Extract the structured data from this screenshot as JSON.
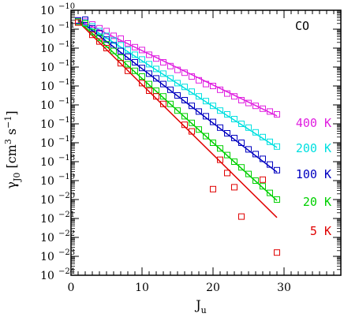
{
  "chart_data": {
    "type": "scatter",
    "title": "",
    "annotation": "CO",
    "xlabel": {
      "base": "J",
      "sub": "u"
    },
    "ylabel": {
      "pre": "γ",
      "sub": "J0",
      "mid": " [cm",
      "exp1": "3",
      "mid2": " s",
      "exp2": "−1",
      "post": "]"
    },
    "x_range": [
      0,
      38
    ],
    "y_range_log10": [
      -24,
      -10
    ],
    "y_scale": "log",
    "x_ticks": [
      0,
      10,
      20,
      30
    ],
    "y_tick_exponents": [
      -10,
      -11,
      -12,
      -13,
      -14,
      -15,
      -16,
      -17,
      -18,
      -19,
      -20,
      -21,
      -22,
      -23,
      -24
    ],
    "y_tick_base": "10",
    "grid": false,
    "series": [
      {
        "name": "400 K",
        "color": "#e020e0",
        "points": [
          [
            1,
            -10.53
          ],
          [
            2,
            -10.6
          ],
          [
            3,
            -10.75
          ],
          [
            4,
            -10.95
          ],
          [
            5,
            -11.1
          ],
          [
            6,
            -11.35
          ],
          [
            7,
            -11.5
          ],
          [
            8,
            -11.75
          ],
          [
            9,
            -11.95
          ],
          [
            10,
            -12.1
          ],
          [
            11,
            -12.35
          ],
          [
            12,
            -12.55
          ],
          [
            13,
            -12.75
          ],
          [
            14,
            -12.95
          ],
          [
            15,
            -13.15
          ],
          [
            16,
            -13.3
          ],
          [
            17,
            -13.5
          ],
          [
            18,
            -13.7
          ],
          [
            19,
            -13.9
          ],
          [
            20,
            -14.0
          ],
          [
            21,
            -14.2
          ],
          [
            22,
            -14.4
          ],
          [
            23,
            -14.55
          ],
          [
            24,
            -14.75
          ],
          [
            25,
            -14.9
          ],
          [
            26,
            -15.05
          ],
          [
            27,
            -15.2
          ],
          [
            28,
            -15.35
          ],
          [
            29,
            -15.5
          ]
        ],
        "fit": [
          [
            1,
            -10.5
          ],
          [
            29,
            -15.58
          ]
        ]
      },
      {
        "name": "200 K",
        "color": "#00e0e0",
        "points": [
          [
            1,
            -10.55
          ],
          [
            2,
            -10.65
          ],
          [
            3,
            -10.85
          ],
          [
            4,
            -11.1
          ],
          [
            5,
            -11.35
          ],
          [
            6,
            -11.6
          ],
          [
            7,
            -11.85
          ],
          [
            8,
            -12.1
          ],
          [
            9,
            -12.35
          ],
          [
            10,
            -12.6
          ],
          [
            11,
            -12.85
          ],
          [
            12,
            -13.1
          ],
          [
            13,
            -13.35
          ],
          [
            14,
            -13.6
          ],
          [
            15,
            -13.85
          ],
          [
            16,
            -14.05
          ],
          [
            17,
            -14.3
          ],
          [
            18,
            -14.55
          ],
          [
            19,
            -14.8
          ],
          [
            20,
            -15.05
          ],
          [
            21,
            -15.3
          ],
          [
            22,
            -15.5
          ],
          [
            23,
            -15.75
          ],
          [
            24,
            -16.0
          ],
          [
            25,
            -16.2
          ],
          [
            26,
            -16.45
          ],
          [
            27,
            -16.7
          ],
          [
            28,
            -16.95
          ],
          [
            29,
            -17.2
          ]
        ],
        "fit": [
          [
            1,
            -10.5
          ],
          [
            29,
            -17.25
          ]
        ]
      },
      {
        "name": "100 K",
        "color": "#0000c0",
        "points": [
          [
            1,
            -10.55
          ],
          [
            2,
            -10.5
          ],
          [
            3,
            -10.95
          ],
          [
            4,
            -11.2
          ],
          [
            5,
            -11.55
          ],
          [
            6,
            -11.85
          ],
          [
            7,
            -12.15
          ],
          [
            8,
            -12.45
          ],
          [
            9,
            -12.75
          ],
          [
            10,
            -13.05
          ],
          [
            11,
            -13.35
          ],
          [
            12,
            -13.6
          ],
          [
            13,
            -13.9
          ],
          [
            14,
            -14.2
          ],
          [
            15,
            -14.5
          ],
          [
            16,
            -14.75
          ],
          [
            17,
            -15.05
          ],
          [
            18,
            -15.35
          ],
          [
            19,
            -15.6
          ],
          [
            20,
            -15.9
          ],
          [
            21,
            -16.2
          ],
          [
            22,
            -16.5
          ],
          [
            23,
            -16.75
          ],
          [
            24,
            -17.0
          ],
          [
            25,
            -17.35
          ],
          [
            26,
            -17.6
          ],
          [
            27,
            -17.85
          ],
          [
            28,
            -18.15
          ],
          [
            29,
            -18.45
          ]
        ],
        "fit": [
          [
            1,
            -10.5
          ],
          [
            29,
            -18.55
          ]
        ]
      },
      {
        "name": "20 K",
        "color": "#00d000",
        "points": [
          [
            1,
            -10.6
          ],
          [
            2,
            -10.7
          ],
          [
            3,
            -11.15
          ],
          [
            4,
            -11.45
          ],
          [
            5,
            -11.8
          ],
          [
            6,
            -12.15
          ],
          [
            7,
            -12.5
          ],
          [
            8,
            -12.85
          ],
          [
            9,
            -13.2
          ],
          [
            10,
            -13.5
          ],
          [
            11,
            -13.9
          ],
          [
            12,
            -14.25
          ],
          [
            13,
            -14.55
          ],
          [
            14,
            -14.95
          ],
          [
            15,
            -15.3
          ],
          [
            16,
            -15.6
          ],
          [
            17,
            -15.95
          ],
          [
            18,
            -16.3
          ],
          [
            19,
            -16.65
          ],
          [
            20,
            -17.0
          ],
          [
            21,
            -17.3
          ],
          [
            22,
            -17.65
          ],
          [
            23,
            -18.0
          ],
          [
            24,
            -18.3
          ],
          [
            25,
            -18.65
          ],
          [
            26,
            -19.0
          ],
          [
            27,
            -19.3
          ],
          [
            28,
            -19.65
          ],
          [
            29,
            -20.0
          ]
        ],
        "fit": [
          [
            1,
            -10.55
          ],
          [
            29,
            -20.05
          ]
        ]
      },
      {
        "name": "5 K",
        "color": "#e00000",
        "points": [
          [
            1,
            -10.65
          ],
          [
            3,
            -11.3
          ],
          [
            4,
            -11.65
          ],
          [
            5,
            -12.0
          ],
          [
            7,
            -12.8
          ],
          [
            8,
            -13.2
          ],
          [
            10,
            -13.85
          ],
          [
            11,
            -14.25
          ],
          [
            12,
            -14.55
          ],
          [
            13,
            -14.95
          ],
          [
            16,
            -16.05
          ],
          [
            17,
            -16.4
          ],
          [
            20,
            -19.45
          ],
          [
            21,
            -17.9
          ],
          [
            22,
            -18.6
          ],
          [
            23,
            -19.35
          ],
          [
            24,
            -20.9
          ],
          [
            27,
            -18.95
          ],
          [
            29,
            -22.8
          ]
        ],
        "fit": [
          [
            1,
            -10.6
          ],
          [
            29,
            -20.95
          ]
        ]
      }
    ]
  }
}
